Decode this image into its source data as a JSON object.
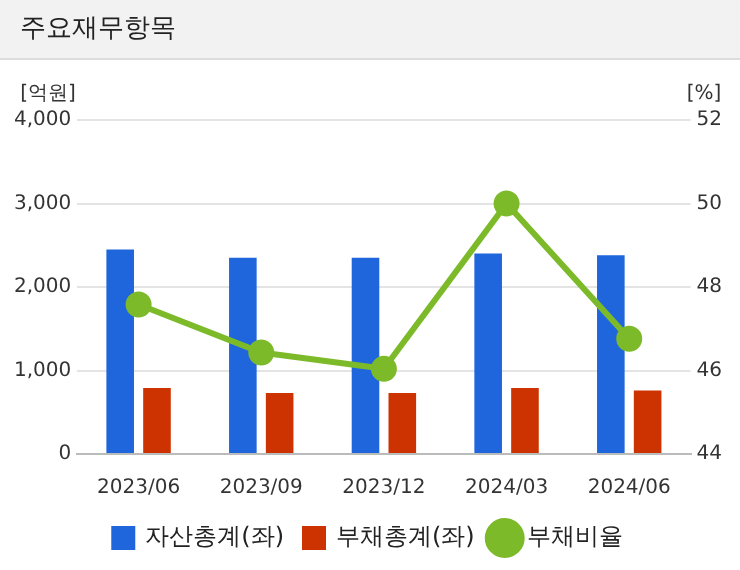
{
  "chart_data": {
    "type": "bar",
    "title": "주요재무항목",
    "ylabel": "[억원]",
    "y2label": "[%]",
    "categories": [
      "2023/06",
      "2023/09",
      "2023/12",
      "2024/03",
      "2024/06"
    ],
    "series": [
      {
        "name": "자산총계(좌)",
        "color": "#1f66dd",
        "values": [
          2450,
          2350,
          2350,
          2400,
          2380
        ]
      },
      {
        "name": "부채총계(좌)",
        "color": "#cc3300",
        "values": [
          790,
          730,
          730,
          790,
          760
        ]
      },
      {
        "name": "부채비율",
        "type": "line",
        "axis": "y2",
        "color": "#7cba2a",
        "marker": "circle",
        "values": [
          47.58,
          46.43,
          46.04,
          50.0,
          46.76
        ]
      }
    ],
    "ylim": [
      0,
      4000
    ],
    "yticks": [
      0,
      {
        "value": 1000,
        "label": "1,000"
      },
      {
        "value": 2000,
        "label": "2,000"
      },
      {
        "value": 3000,
        "label": "3,000"
      },
      {
        "value": 4000,
        "label": "4,000"
      }
    ],
    "y2lim": [
      44,
      52
    ],
    "y2ticks": [
      44,
      46,
      48,
      50,
      52
    ],
    "grid": "y",
    "legend": "bottom"
  }
}
